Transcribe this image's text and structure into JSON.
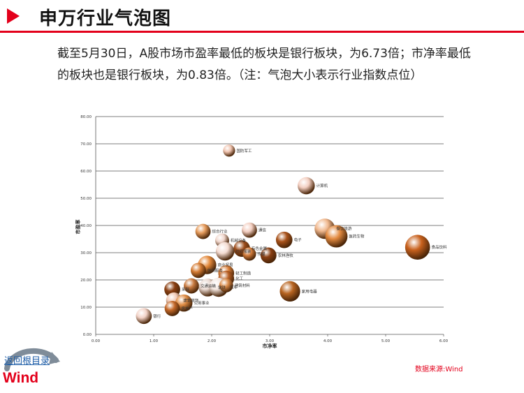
{
  "header": {
    "title": "申万行业气泡图"
  },
  "description": "截至5月30日，A股市场市盈率最低的板块是银行板块，为6.73倍；市净率最低的板块也是银行板块，为0.83倍。（注：气泡大小表示行业指数点位）",
  "nav": {
    "back_label": "返回根目录",
    "logo_text": "Wind"
  },
  "source": "数据来源:Wind",
  "chart_data": {
    "type": "scatter",
    "title": "",
    "xlabel": "市净率",
    "ylabel": "市盈率",
    "xlim": [
      0,
      6
    ],
    "ylim": [
      0,
      80
    ],
    "xticks": [
      "0.00",
      "1.00",
      "2.00",
      "3.00",
      "4.00",
      "5.00",
      "6.00"
    ],
    "yticks": [
      "0.00",
      "10.00",
      "20.00",
      "30.00",
      "40.00",
      "50.00",
      "60.00",
      "70.00",
      "80.00"
    ],
    "grid": "horizontal",
    "points": [
      {
        "name": "国防军工",
        "x": 2.3,
        "y": 67.5,
        "size": 1.0,
        "color": "#f0c4b0"
      },
      {
        "name": "计算机",
        "x": 3.63,
        "y": 54.6,
        "size": 1.8,
        "color": "#f3cfc2"
      },
      {
        "name": "餐饮旅游",
        "x": 3.95,
        "y": 38.8,
        "size": 2.3,
        "color": "#f0b88e"
      },
      {
        "name": "医药生物",
        "x": 4.15,
        "y": 36.0,
        "size": 2.6,
        "color": "#e38a40"
      },
      {
        "name": "食品饮料",
        "x": 5.55,
        "y": 32.0,
        "size": 3.0,
        "color": "#c8611d"
      },
      {
        "name": "通信",
        "x": 2.65,
        "y": 38.3,
        "size": 1.5,
        "color": "#f3cfc2"
      },
      {
        "name": "电子",
        "x": 3.25,
        "y": 34.7,
        "size": 1.7,
        "color": "#a8521a"
      },
      {
        "name": "综合行业",
        "x": 1.85,
        "y": 37.8,
        "size": 1.5,
        "color": "#e59a5a"
      },
      {
        "name": "机械设备",
        "x": 2.18,
        "y": 34.5,
        "size": 1.3,
        "color": "#f0d6cc"
      },
      {
        "name": "有色金属",
        "x": 2.52,
        "y": 31.5,
        "size": 1.7,
        "color": "#9c4c1a"
      },
      {
        "name": "农林渔牧",
        "x": 2.98,
        "y": 29.0,
        "size": 1.6,
        "color": "#8a3f12"
      },
      {
        "name": "纺织服装",
        "x": 2.23,
        "y": 30.5,
        "size": 2.0,
        "color": "#f5ddd3"
      },
      {
        "name": "传媒",
        "x": 2.65,
        "y": 29.5,
        "size": 1.2,
        "color": "#d07a3a"
      },
      {
        "name": "商业贸易",
        "x": 1.92,
        "y": 25.5,
        "size": 2.0,
        "color": "#e48a3c"
      },
      {
        "name": "休闲服务",
        "x": 1.77,
        "y": 23.5,
        "size": 1.5,
        "color": "#d47b33"
      },
      {
        "name": "轻工制造",
        "x": 2.25,
        "y": 22.5,
        "size": 1.6,
        "color": "#d97e38"
      },
      {
        "name": "化工",
        "x": 2.25,
        "y": 20.5,
        "size": 1.6,
        "color": "#b85f24"
      },
      {
        "name": "采掘",
        "x": 1.32,
        "y": 16.5,
        "size": 1.6,
        "color": "#8a3f12"
      },
      {
        "name": "交通运输",
        "x": 1.65,
        "y": 17.8,
        "size": 1.5,
        "color": "#c87a40"
      },
      {
        "name": "钢铁",
        "x": 1.93,
        "y": 17.2,
        "size": 1.9,
        "color": "#e8d8d0"
      },
      {
        "name": "汽车",
        "x": 2.12,
        "y": 17.3,
        "size": 2.1,
        "color": "#f3e6df"
      },
      {
        "name": "建筑材料",
        "x": 2.25,
        "y": 18.0,
        "size": 1.3,
        "color": "#d98a48"
      },
      {
        "name": "家用电器",
        "x": 3.35,
        "y": 15.8,
        "size": 2.3,
        "color": "#b86420"
      },
      {
        "name": "建筑装饰",
        "x": 1.35,
        "y": 12.5,
        "size": 1.6,
        "color": "#f0c9b5"
      },
      {
        "name": "公用事业",
        "x": 1.52,
        "y": 11.5,
        "size": 1.8,
        "color": "#e08d45"
      },
      {
        "name": "房地产",
        "x": 1.32,
        "y": 9.5,
        "size": 1.5,
        "color": "#c46828"
      },
      {
        "name": "银行",
        "x": 0.83,
        "y": 6.73,
        "size": 1.6,
        "color": "#f2d3c8"
      }
    ]
  }
}
